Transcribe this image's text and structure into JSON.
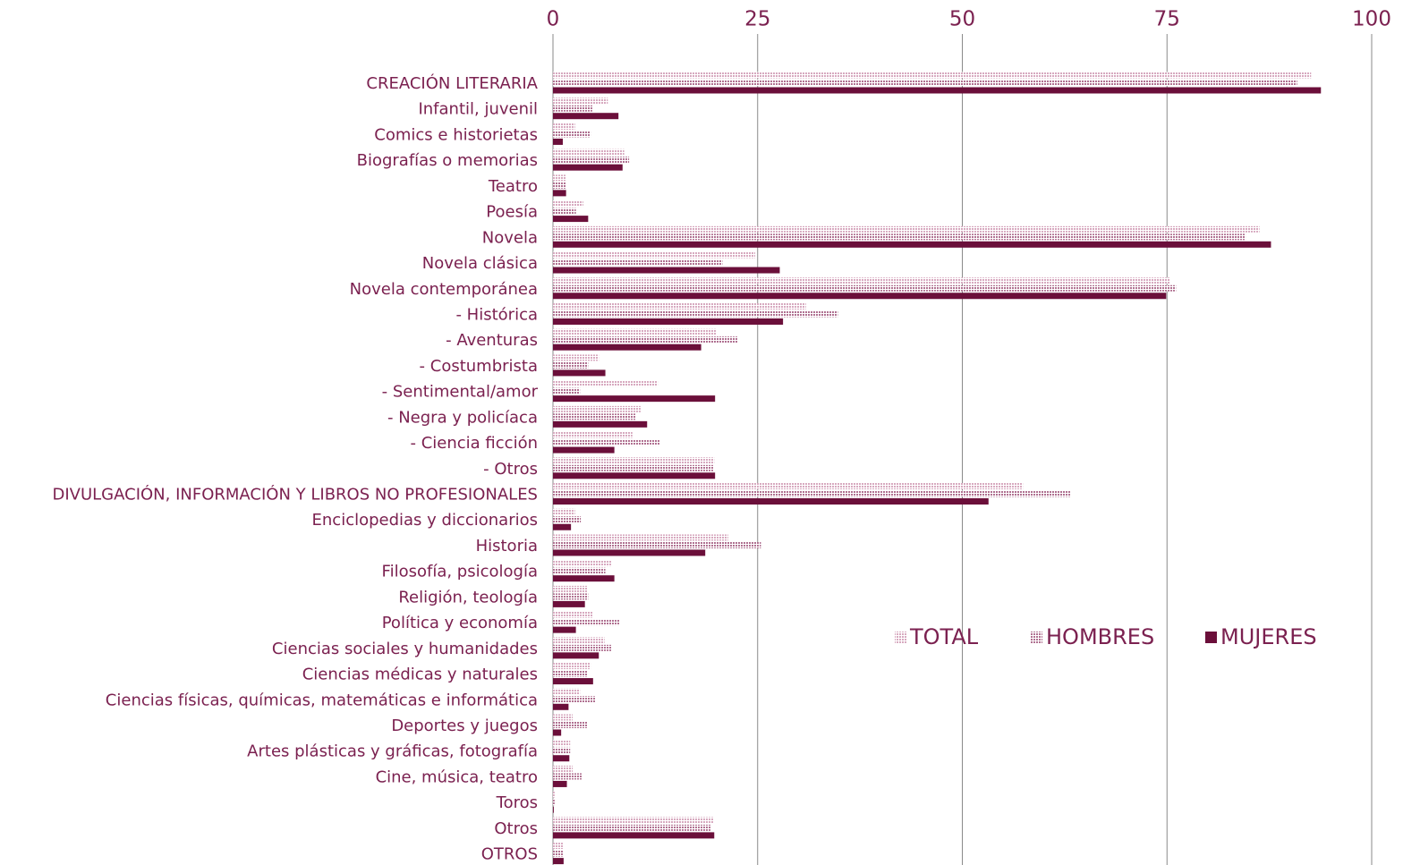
{
  "chart_data": {
    "type": "hbar",
    "categories": [
      "CREACIÓN LITERARIA",
      "Infantil, juvenil",
      "Comics e historietas",
      "Biografías o memorias",
      "Teatro",
      "Poesía",
      "Novela",
      "Novela clásica",
      "Novela contemporánea",
      "- Histórica",
      "- Aventuras",
      "- Costumbrista",
      "- Sentimental/amor",
      "- Negra y policíaca",
      "- Ciencia ficción",
      "- Otros",
      "DIVULGACIÓN, INFORMACIÓN Y LIBROS NO PROFESIONALES",
      "Enciclopedias y diccionarios",
      "Historia",
      "Filosofía, psicología",
      "Religión, teología",
      "Política y economía",
      "Ciencias sociales y humanidades",
      "Ciencias médicas y naturales",
      "Ciencias físicas, químicas, matemáticas e informática",
      "Deportes y juegos",
      "Artes plásticas y gráficas, fotografía",
      "Cine, música, teatro",
      "Toros",
      "Otros",
      "OTROS"
    ],
    "series": [
      {
        "name": "TOTAL",
        "color": "#d7a9bf",
        "fill": "checked",
        "values": [
          92.6,
          6.7,
          2.7,
          8.7,
          1.6,
          3.7,
          86.3,
          24.7,
          75.4,
          30.9,
          20.0,
          5.6,
          12.8,
          10.7,
          9.7,
          19.7,
          57.4,
          2.7,
          21.4,
          7.1,
          4.2,
          4.9,
          6.3,
          4.6,
          3.3,
          2.4,
          2.1,
          2.4,
          0.2,
          19.6,
          1.3
        ]
      },
      {
        "name": "HOMBRES",
        "color": "#b07191",
        "fill": "checked",
        "values": [
          90.9,
          4.8,
          4.6,
          9.3,
          1.6,
          2.8,
          84.6,
          20.7,
          76.1,
          34.8,
          22.6,
          4.3,
          3.3,
          10.1,
          13.1,
          19.6,
          63.2,
          3.4,
          25.4,
          6.4,
          4.3,
          8.1,
          7.2,
          4.2,
          5.2,
          4.2,
          2.1,
          3.5,
          0.2,
          19.3,
          1.3
        ]
      },
      {
        "name": "MUJERES",
        "color": "#6b0f3a",
        "fill": "solid",
        "values": [
          93.8,
          8.0,
          1.2,
          8.5,
          1.6,
          4.3,
          87.7,
          27.7,
          74.9,
          28.1,
          18.1,
          6.4,
          19.8,
          11.5,
          7.5,
          19.8,
          53.2,
          2.2,
          18.6,
          7.5,
          3.9,
          2.8,
          5.6,
          4.9,
          1.9,
          1.0,
          2.0,
          1.7,
          0.1,
          19.7,
          1.3
        ]
      }
    ],
    "xlim": [
      0,
      100
    ],
    "xticks": [
      0,
      25,
      50,
      75,
      100
    ],
    "grid": true,
    "legend_position": "right"
  }
}
